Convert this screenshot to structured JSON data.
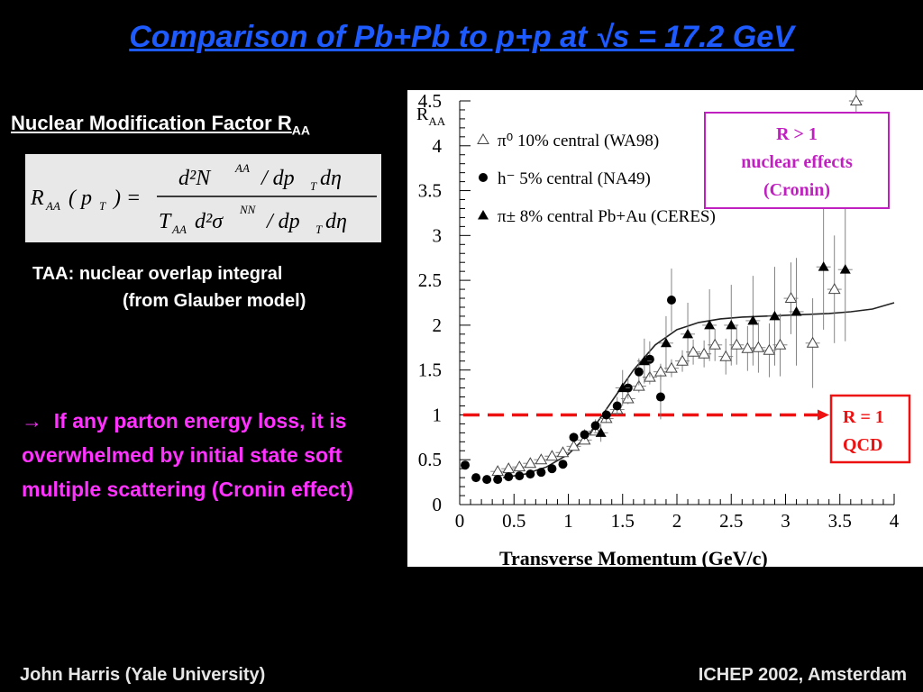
{
  "slide": {
    "title": "Comparison of Pb+Pb to p+p at √s = 17.2 GeV",
    "nmf_label": "Nuclear Modification Factor R",
    "nmf_sub": "AA",
    "taa_line1": "TAA: nuclear overlap integral",
    "taa_line2": "(from Glauber model)",
    "arrow": "→",
    "conclusion": "If any parton energy loss, it is overwhelmed by initial state soft multiple scattering (Cronin effect)",
    "footer_left": "John Harris (Yale University)",
    "footer_right": "ICHEP 2002, Amsterdam",
    "colors": {
      "title": "#1e5bff",
      "conclusion": "#ff33ff",
      "cronin_box": "#c020c0",
      "qcd_box": "#ee1111"
    }
  },
  "formula": {
    "lhs_R": "R",
    "lhs_sub": "AA",
    "lhs_arg": "( p",
    "lhs_arg_sub": "T",
    "lhs_close": ") =",
    "num": "d²N",
    "num_sup": "AA",
    "num_rest": "/ dp",
    "num_rest_sub": "T",
    "num_end": "dη",
    "den_T": "T",
    "den_T_sub": "AA",
    "den_d": "d²σ",
    "den_sup": "NN",
    "den_rest": "/ dp",
    "den_rest_sub": "T",
    "den_end": "dη"
  },
  "chart_data": {
    "type": "scatter",
    "ylabel": "R",
    "ylabel_sub": "AA",
    "xlabel": "Transverse Momentum (GeV/c)",
    "xlim": [
      0,
      4
    ],
    "ylim": [
      0,
      4.5
    ],
    "xticks": [
      "0",
      "0.5",
      "1",
      "1.5",
      "2",
      "2.5",
      "3",
      "3.5",
      "4"
    ],
    "yticks": [
      "0",
      "0.5",
      "1",
      "1.5",
      "2",
      "2.5",
      "3",
      "3.5",
      "4",
      "4.5"
    ],
    "legend": [
      {
        "marker": "open-triangle",
        "label": "π⁰ 10% central (WA98)"
      },
      {
        "marker": "filled-circle",
        "label": "h⁻ 5% central (NA49)"
      },
      {
        "marker": "filled-triangle",
        "label": "π± 8% central Pb+Au (CERES)"
      }
    ],
    "series": [
      {
        "name": "π⁰ 10% central (WA98)",
        "marker": "open-triangle",
        "x": [
          0.35,
          0.45,
          0.55,
          0.65,
          0.75,
          0.85,
          0.95,
          1.05,
          1.15,
          1.25,
          1.35,
          1.45,
          1.55,
          1.65,
          1.75,
          1.85,
          1.95,
          2.05,
          2.15,
          2.25,
          2.35,
          2.45,
          2.55,
          2.65,
          2.75,
          2.85,
          2.95,
          3.05,
          3.25,
          3.45,
          3.65
        ],
        "y": [
          0.37,
          0.4,
          0.42,
          0.46,
          0.5,
          0.54,
          0.58,
          0.65,
          0.72,
          0.82,
          0.96,
          1.06,
          1.18,
          1.32,
          1.42,
          1.48,
          1.52,
          1.6,
          1.7,
          1.68,
          1.78,
          1.65,
          1.78,
          1.74,
          1.75,
          1.72,
          1.78,
          2.3,
          1.8,
          2.4,
          4.5
        ],
        "err": [
          0.02,
          0.02,
          0.02,
          0.02,
          0.02,
          0.03,
          0.03,
          0.03,
          0.03,
          0.04,
          0.05,
          0.05,
          0.06,
          0.07,
          0.08,
          0.09,
          0.1,
          0.12,
          0.14,
          0.15,
          0.18,
          0.2,
          0.22,
          0.25,
          0.28,
          0.3,
          0.35,
          0.4,
          0.5,
          0.6,
          1.0
        ]
      },
      {
        "name": "h⁻ 5% central (NA49)",
        "marker": "filled-circle",
        "x": [
          0.05,
          0.15,
          0.25,
          0.35,
          0.45,
          0.55,
          0.65,
          0.75,
          0.85,
          0.95,
          1.05,
          1.15,
          1.25,
          1.35,
          1.45,
          1.55,
          1.65,
          1.75,
          1.85,
          1.95
        ],
        "y": [
          0.44,
          0.3,
          0.28,
          0.28,
          0.31,
          0.32,
          0.34,
          0.36,
          0.4,
          0.45,
          0.75,
          0.78,
          0.88,
          1.0,
          1.1,
          1.3,
          1.48,
          1.62,
          1.2,
          2.28
        ],
        "err": [
          0.02,
          0.02,
          0.02,
          0.02,
          0.02,
          0.02,
          0.02,
          0.02,
          0.03,
          0.04,
          0.05,
          0.06,
          0.07,
          0.08,
          0.1,
          0.12,
          0.15,
          0.2,
          0.25,
          0.35
        ]
      },
      {
        "name": "π± 8% central Pb+Au (CERES)",
        "marker": "filled-triangle",
        "x": [
          1.3,
          1.5,
          1.7,
          1.9,
          2.1,
          2.3,
          2.5,
          2.7,
          2.9,
          3.1,
          3.35,
          3.55
        ],
        "y": [
          0.8,
          1.3,
          1.6,
          1.8,
          1.9,
          2.0,
          2.0,
          2.05,
          2.1,
          2.15,
          2.65,
          2.62
        ],
        "err": [
          0.1,
          0.2,
          0.25,
          0.3,
          0.35,
          0.4,
          0.45,
          0.5,
          0.55,
          0.6,
          0.7,
          0.8
        ]
      }
    ],
    "fit_curve": {
      "x": [
        0.4,
        0.6,
        0.8,
        1.0,
        1.2,
        1.4,
        1.6,
        1.8,
        2.0,
        2.2,
        2.4,
        2.6,
        2.8,
        3.0,
        3.2,
        3.4,
        3.6,
        3.8,
        4.0
      ],
      "y": [
        0.3,
        0.34,
        0.42,
        0.56,
        0.8,
        1.15,
        1.5,
        1.78,
        1.95,
        2.03,
        2.07,
        2.09,
        2.1,
        2.11,
        2.12,
        2.13,
        2.15,
        2.18,
        2.25
      ]
    },
    "reference_line": {
      "y": 1
    },
    "annotations": [
      {
        "name": "cronin",
        "lines": [
          "R > 1",
          "nuclear effects",
          "(Cronin)"
        ]
      },
      {
        "name": "qcd",
        "lines": [
          "R = 1",
          "QCD"
        ]
      }
    ]
  }
}
